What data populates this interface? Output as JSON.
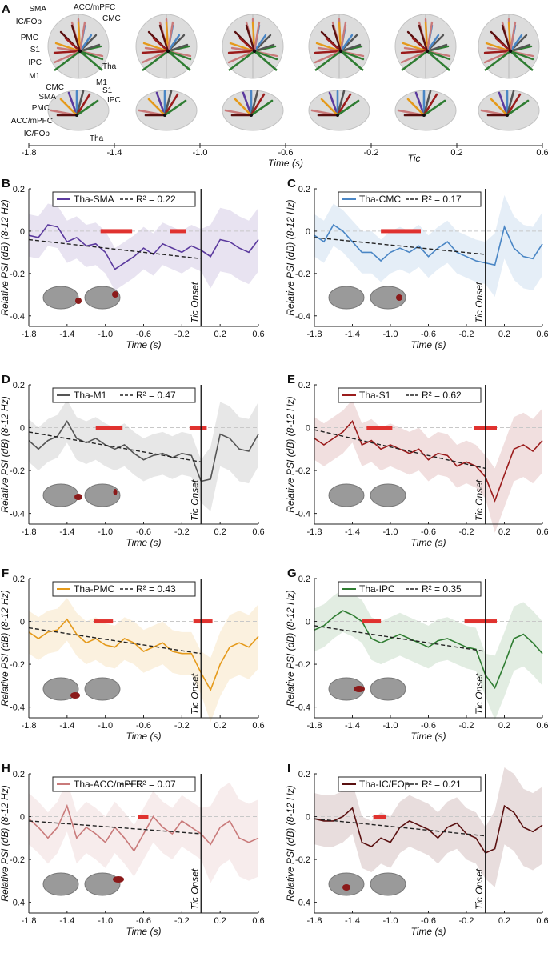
{
  "panelA": {
    "label": "A",
    "labels_top": [
      "SMA",
      "ACC/mPFC",
      "IC/FOp",
      "CMC",
      "PMC",
      "S1",
      "IPC",
      "Tha",
      "M1"
    ],
    "labels_side": [
      "M1",
      "CMC",
      "S1",
      "SMA",
      "IPC",
      "PMC",
      "ACC/mPFC",
      "IC/FOp",
      "Tha"
    ],
    "timeline": {
      "ticks": [
        "-1.8",
        "-1.4",
        "-1.0",
        "-0.6",
        "-0.2",
        "0.2",
        "0.6"
      ],
      "xlabel": "Time (s)",
      "marker_label": "Tic",
      "range": [
        -1.8,
        0.6
      ]
    },
    "colors": {
      "SMA": "#5b3a9e",
      "CMC": "#4a86c5",
      "M1": "#555555",
      "S1": "#9b1c1c",
      "PMC": "#e59a1b",
      "IPC": "#2f7d32",
      "ACC/mPFC": "#c97a7a",
      "IC/FOp": "#5a1010"
    }
  },
  "chart_data": [
    {
      "type": "line",
      "panel": "B",
      "legend": "Tha-SMA",
      "r2_text": "R² = 0.22",
      "color": "#5b3a9e",
      "xlabel": "Time (s)",
      "ylabel": "Relative PSI (dB) (8-12 Hz)",
      "xlim": [
        -1.8,
        0.6
      ],
      "ylim": [
        -0.45,
        0.2
      ],
      "xticks": [
        "-1.8",
        "-1.4",
        "-1.0",
        "-0.6",
        "-0.2",
        "0.2",
        "0.6"
      ],
      "yticks": [
        "0.2",
        "0",
        "-0.2",
        "-0.4"
      ],
      "onset_label": "Tic Onset",
      "x": [
        -1.8,
        -1.7,
        -1.6,
        -1.5,
        -1.4,
        -1.3,
        -1.2,
        -1.1,
        -1.0,
        -0.9,
        -0.8,
        -0.7,
        -0.6,
        -0.5,
        -0.4,
        -0.3,
        -0.2,
        -0.1,
        0.0,
        0.1,
        0.2,
        0.3,
        0.4,
        0.5,
        0.6
      ],
      "y": [
        -0.02,
        -0.03,
        0.03,
        0.02,
        -0.05,
        -0.03,
        -0.07,
        -0.06,
        -0.1,
        -0.18,
        -0.15,
        -0.12,
        -0.08,
        -0.11,
        -0.06,
        -0.08,
        -0.1,
        -0.07,
        -0.09,
        -0.12,
        -0.04,
        -0.05,
        -0.08,
        -0.1,
        -0.04
      ],
      "band": 0.1,
      "trend": [
        [
          -1.8,
          -0.04
        ],
        [
          0.0,
          -0.13
        ]
      ],
      "sig": [
        [
          -1.05,
          -0.72
        ],
        [
          -0.32,
          -0.16
        ]
      ]
    },
    {
      "type": "line",
      "panel": "C",
      "legend": "Tha-CMC",
      "r2_text": "R² = 0.17",
      "color": "#4a86c5",
      "xlabel": "Time (s)",
      "ylabel": "Relative PSI (dB) (8-12 Hz)",
      "xlim": [
        -1.8,
        0.6
      ],
      "ylim": [
        -0.45,
        0.2
      ],
      "xticks": [
        "-1.8",
        "-1.4",
        "-1.0",
        "-0.6",
        "-0.2",
        "0.2",
        "0.6"
      ],
      "yticks": [
        "0.2",
        "0",
        "-0.2",
        "-0.4"
      ],
      "onset_label": "Tic Onset",
      "x": [
        -1.8,
        -1.7,
        -1.6,
        -1.5,
        -1.4,
        -1.3,
        -1.2,
        -1.1,
        -1.0,
        -0.9,
        -0.8,
        -0.7,
        -0.6,
        -0.5,
        -0.4,
        -0.3,
        -0.2,
        -0.1,
        0.0,
        0.1,
        0.2,
        0.3,
        0.4,
        0.5,
        0.6
      ],
      "y": [
        -0.02,
        -0.05,
        0.03,
        0.0,
        -0.05,
        -0.1,
        -0.1,
        -0.14,
        -0.1,
        -0.08,
        -0.1,
        -0.07,
        -0.12,
        -0.08,
        -0.05,
        -0.1,
        -0.12,
        -0.14,
        -0.15,
        -0.16,
        0.02,
        -0.08,
        -0.12,
        -0.13,
        -0.06
      ],
      "band": 0.1,
      "trend": [
        [
          -1.8,
          -0.03
        ],
        [
          0.0,
          -0.11
        ]
      ],
      "sig": [
        [
          -1.1,
          -0.68
        ]
      ]
    },
    {
      "type": "line",
      "panel": "D",
      "legend": "Tha-M1",
      "r2_text": "R² = 0.47",
      "color": "#555555",
      "xlabel": "Time (s)",
      "ylabel": "Relative PSI (dB) (8-12 Hz)",
      "xlim": [
        -1.8,
        0.6
      ],
      "ylim": [
        -0.45,
        0.2
      ],
      "xticks": [
        "-1.8",
        "-1.4",
        "-1.0",
        "-0.6",
        "-0.2",
        "0.2",
        "0.6"
      ],
      "yticks": [
        "0.2",
        "0",
        "-0.2",
        "-0.4"
      ],
      "onset_label": "Tic Onset",
      "x": [
        -1.8,
        -1.7,
        -1.6,
        -1.5,
        -1.4,
        -1.3,
        -1.2,
        -1.1,
        -1.0,
        -0.9,
        -0.8,
        -0.7,
        -0.6,
        -0.5,
        -0.4,
        -0.3,
        -0.2,
        -0.1,
        0.0,
        0.1,
        0.2,
        0.3,
        0.4,
        0.5,
        0.6
      ],
      "y": [
        -0.06,
        -0.1,
        -0.06,
        -0.04,
        0.03,
        -0.05,
        -0.07,
        -0.05,
        -0.08,
        -0.1,
        -0.08,
        -0.12,
        -0.15,
        -0.13,
        -0.12,
        -0.14,
        -0.12,
        -0.13,
        -0.25,
        -0.24,
        -0.03,
        -0.05,
        -0.1,
        -0.11,
        -0.03
      ],
      "band": 0.1,
      "trend": [
        [
          -1.8,
          -0.02
        ],
        [
          0.0,
          -0.16
        ]
      ],
      "sig": [
        [
          -1.1,
          -0.82
        ],
        [
          -0.12,
          0.06
        ]
      ]
    },
    {
      "type": "line",
      "panel": "E",
      "legend": "Tha-S1",
      "r2_text": "R² = 0.62",
      "color": "#9b1c1c",
      "xlabel": "Time (s)",
      "ylabel": "Relative PSI (dB) (8-12 Hz)",
      "xlim": [
        -1.8,
        0.6
      ],
      "ylim": [
        -0.45,
        0.2
      ],
      "xticks": [
        "-1.8",
        "-1.4",
        "-1.0",
        "-0.6",
        "-0.2",
        "0.2",
        "0.6"
      ],
      "yticks": [
        "0.2",
        "0",
        "-0.2",
        "-0.4"
      ],
      "onset_label": "Tic Onset",
      "x": [
        -1.8,
        -1.7,
        -1.6,
        -1.5,
        -1.4,
        -1.3,
        -1.2,
        -1.1,
        -1.0,
        -0.9,
        -0.8,
        -0.7,
        -0.6,
        -0.5,
        -0.4,
        -0.3,
        -0.2,
        -0.1,
        0.0,
        0.1,
        0.2,
        0.3,
        0.4,
        0.5,
        0.6
      ],
      "y": [
        -0.05,
        -0.08,
        -0.05,
        -0.02,
        0.03,
        -0.08,
        -0.06,
        -0.1,
        -0.08,
        -0.1,
        -0.12,
        -0.1,
        -0.15,
        -0.12,
        -0.13,
        -0.18,
        -0.16,
        -0.18,
        -0.23,
        -0.34,
        -0.22,
        -0.1,
        -0.08,
        -0.11,
        -0.06
      ],
      "band": 0.1,
      "trend": [
        [
          -1.8,
          -0.01
        ],
        [
          0.0,
          -0.19
        ]
      ],
      "sig": [
        [
          -1.25,
          -0.98
        ],
        [
          -0.12,
          0.12
        ]
      ]
    },
    {
      "type": "line",
      "panel": "F",
      "legend": "Tha-PMC",
      "r2_text": "R² = 0.43",
      "color": "#e59a1b",
      "xlabel": "Time (s)",
      "ylabel": "Relative PSI (dB) (8-12 Hz)",
      "xlim": [
        -1.8,
        0.6
      ],
      "ylim": [
        -0.45,
        0.2
      ],
      "xticks": [
        "-1.8",
        "-1.4",
        "-1.0",
        "-0.6",
        "-0.2",
        "0.2",
        "0.6"
      ],
      "yticks": [
        "0.2",
        "0",
        "-0.2",
        "-0.4"
      ],
      "onset_label": "Tic Onset",
      "x": [
        -1.8,
        -1.7,
        -1.6,
        -1.5,
        -1.4,
        -1.3,
        -1.2,
        -1.1,
        -1.0,
        -0.9,
        -0.8,
        -0.7,
        -0.6,
        -0.5,
        -0.4,
        -0.3,
        -0.2,
        -0.1,
        0.0,
        0.1,
        0.2,
        0.3,
        0.4,
        0.5,
        0.6
      ],
      "y": [
        -0.05,
        -0.08,
        -0.05,
        -0.04,
        0.01,
        -0.06,
        -0.1,
        -0.08,
        -0.11,
        -0.12,
        -0.08,
        -0.1,
        -0.14,
        -0.12,
        -0.1,
        -0.14,
        -0.15,
        -0.15,
        -0.24,
        -0.32,
        -0.2,
        -0.12,
        -0.1,
        -0.12,
        -0.07
      ],
      "band": 0.1,
      "trend": [
        [
          -1.8,
          -0.03
        ],
        [
          0.0,
          -0.15
        ]
      ],
      "sig": [
        [
          -1.12,
          -0.92
        ],
        [
          -0.08,
          0.12
        ]
      ]
    },
    {
      "type": "line",
      "panel": "G",
      "legend": "Tha-IPC",
      "r2_text": "R² = 0.35",
      "color": "#2f7d32",
      "xlabel": "Time (s)",
      "ylabel": "Relative PSI (dB) (8-12 Hz)",
      "xlim": [
        -1.8,
        0.6
      ],
      "ylim": [
        -0.45,
        0.2
      ],
      "xticks": [
        "-1.8",
        "-1.4",
        "-1.0",
        "-0.6",
        "-0.2",
        "0.2",
        "0.6"
      ],
      "yticks": [
        "0.2",
        "0",
        "-0.2",
        "-0.4"
      ],
      "onset_label": "Tic Onset",
      "x": [
        -1.8,
        -1.7,
        -1.6,
        -1.5,
        -1.4,
        -1.3,
        -1.2,
        -1.1,
        -1.0,
        -0.9,
        -0.8,
        -0.7,
        -0.6,
        -0.5,
        -0.4,
        -0.3,
        -0.2,
        -0.1,
        0.0,
        0.1,
        0.2,
        0.3,
        0.4,
        0.5,
        0.6
      ],
      "y": [
        -0.04,
        -0.02,
        0.02,
        0.05,
        0.03,
        0.0,
        -0.08,
        -0.1,
        -0.08,
        -0.06,
        -0.08,
        -0.1,
        -0.12,
        -0.09,
        -0.08,
        -0.1,
        -0.12,
        -0.13,
        -0.25,
        -0.31,
        -0.2,
        -0.08,
        -0.06,
        -0.1,
        -0.15
      ],
      "band": 0.1,
      "trend": [
        [
          -1.8,
          -0.02
        ],
        [
          0.0,
          -0.14
        ]
      ],
      "sig": [
        [
          -1.3,
          -1.1
        ],
        [
          -0.22,
          0.12
        ]
      ]
    },
    {
      "type": "line",
      "panel": "H",
      "legend": "Tha-ACC/mPFC",
      "r2_text": "R² = 0.07",
      "color": "#c97a7a",
      "xlabel": "Time (s)",
      "ylabel": "Relative PSI (dB) (8-12 Hz)",
      "xlim": [
        -1.8,
        0.6
      ],
      "ylim": [
        -0.45,
        0.2
      ],
      "xticks": [
        "-1.8",
        "-1.4",
        "-1.0",
        "-0.6",
        "-0.2",
        "0.2",
        "0.6"
      ],
      "yticks": [
        "0.2",
        "0",
        "-0.2",
        "-0.4"
      ],
      "onset_label": "Tic Onset",
      "x": [
        -1.8,
        -1.7,
        -1.6,
        -1.5,
        -1.4,
        -1.3,
        -1.2,
        -1.1,
        -1.0,
        -0.9,
        -0.8,
        -0.7,
        -0.6,
        -0.5,
        -0.4,
        -0.3,
        -0.2,
        -0.1,
        0.0,
        0.1,
        0.2,
        0.3,
        0.4,
        0.5,
        0.6
      ],
      "y": [
        -0.01,
        -0.05,
        -0.1,
        -0.05,
        0.05,
        -0.1,
        -0.05,
        -0.08,
        -0.12,
        -0.05,
        -0.1,
        -0.16,
        -0.08,
        0.0,
        -0.05,
        -0.08,
        -0.02,
        -0.05,
        -0.08,
        -0.13,
        -0.05,
        -0.02,
        -0.1,
        -0.12,
        -0.1
      ],
      "band": 0.12,
      "trend": [
        [
          -1.8,
          -0.02
        ],
        [
          0.0,
          -0.08
        ]
      ],
      "sig": [
        [
          -0.66,
          -0.55
        ]
      ]
    },
    {
      "type": "line",
      "panel": "I",
      "legend": "Tha-IC/FOp",
      "r2_text": "R² = 0.21",
      "color": "#5a1010",
      "xlabel": "Time (s)",
      "ylabel": "Relative PSI (dB) (8-12 Hz)",
      "xlim": [
        -1.8,
        0.6
      ],
      "ylim": [
        -0.45,
        0.2
      ],
      "xticks": [
        "-1.8",
        "-1.4",
        "-1.0",
        "-0.6",
        "-0.2",
        "0.2",
        "0.6"
      ],
      "yticks": [
        "0.2",
        "0",
        "-0.2",
        "-0.4"
      ],
      "onset_label": "Tic Onset",
      "x": [
        -1.8,
        -1.7,
        -1.6,
        -1.5,
        -1.4,
        -1.3,
        -1.2,
        -1.1,
        -1.0,
        -0.9,
        -0.8,
        -0.7,
        -0.6,
        -0.5,
        -0.4,
        -0.3,
        -0.2,
        -0.1,
        0.0,
        0.1,
        0.2,
        0.3,
        0.4,
        0.5,
        0.6
      ],
      "y": [
        -0.01,
        -0.02,
        -0.02,
        0.0,
        0.04,
        -0.12,
        -0.14,
        -0.1,
        -0.12,
        -0.05,
        -0.02,
        -0.04,
        -0.06,
        -0.1,
        -0.05,
        -0.03,
        -0.08,
        -0.1,
        -0.17,
        -0.15,
        0.05,
        0.02,
        -0.05,
        -0.07,
        -0.04
      ],
      "band": 0.12,
      "trend": [
        [
          -1.8,
          -0.01
        ],
        [
          0.0,
          -0.09
        ]
      ],
      "sig": [
        [
          -1.18,
          -1.05
        ]
      ]
    }
  ]
}
